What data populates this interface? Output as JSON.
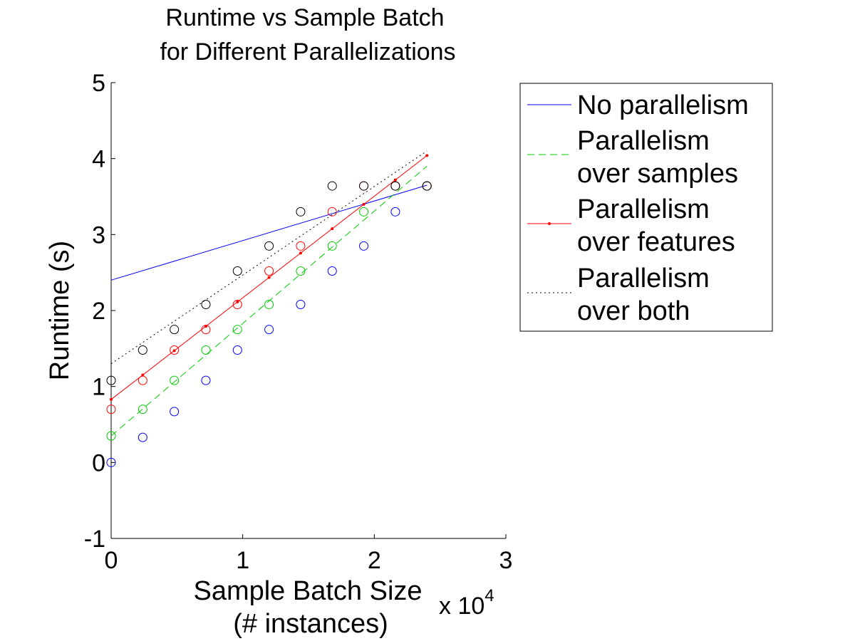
{
  "chart_data": {
    "type": "line",
    "title_line1": "Runtime vs Sample Batch",
    "title_line2": "for Different Parallelizations",
    "xlabel_line1": "Sample Batch Size",
    "xlabel_line2": "(# instances)",
    "ylabel": "Runtime (s)",
    "x_multiplier_base": "x 10",
    "x_multiplier_exp": "4",
    "xlim": [
      0,
      3
    ],
    "ylim": [
      -1,
      5
    ],
    "xticks": [
      "0",
      "1",
      "2",
      "3"
    ],
    "yticks": [
      "-1",
      "0",
      "1",
      "2",
      "3",
      "4",
      "5"
    ],
    "legend_position": "outside-right",
    "x": [
      0,
      0.24,
      0.48,
      0.72,
      0.96,
      1.2,
      1.44,
      1.68,
      1.92,
      2.16,
      2.4
    ],
    "series": [
      {
        "legend_line1": "No parallelism",
        "legend_line2": "",
        "color": "#0000ff",
        "linestyle": "solid",
        "marker": "none",
        "fit": [
          0.0,
          2.4,
          2.4,
          3.65
        ],
        "points": [
          0.0,
          0.33,
          0.67,
          1.08,
          1.48,
          1.75,
          2.08,
          2.52,
          2.85,
          3.3,
          3.64
        ]
      },
      {
        "legend_line1": "Parallelism",
        "legend_line2": "over samples",
        "color": "#00cc00",
        "linestyle": "dashed",
        "marker": "none",
        "fit": [
          0.0,
          0.35,
          2.4,
          3.9
        ],
        "points": [
          0.35,
          0.7,
          1.08,
          1.48,
          1.75,
          2.08,
          2.52,
          2.85,
          3.3,
          3.64,
          3.64
        ]
      },
      {
        "legend_line1": "Parallelism",
        "legend_line2": "over features",
        "color": "#ff0000",
        "linestyle": "solid",
        "marker": "dot",
        "fit": [
          0.0,
          0.83,
          2.4,
          4.04
        ],
        "points": [
          0.7,
          1.08,
          1.48,
          1.75,
          2.08,
          2.52,
          2.85,
          3.3,
          3.64,
          3.64,
          3.64
        ]
      },
      {
        "legend_line1": "Parallelism",
        "legend_line2": "over both",
        "color": "#000000",
        "linestyle": "dotted",
        "marker": "none",
        "fit": [
          0.0,
          1.3,
          2.4,
          4.1
        ],
        "points": [
          1.08,
          1.48,
          1.75,
          2.08,
          2.52,
          2.85,
          3.3,
          3.64,
          3.64,
          3.64,
          3.64
        ]
      }
    ]
  }
}
